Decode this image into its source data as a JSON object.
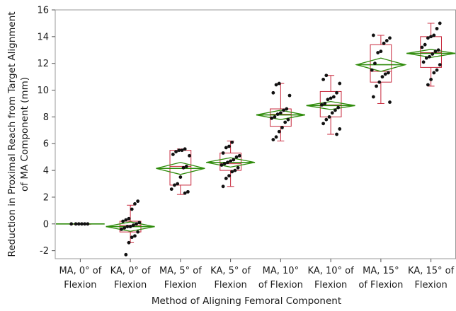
{
  "chart_data": {
    "type": "box-diamond",
    "xlabel": "Method of Aligning Femoral Component",
    "ylabel_lines": [
      "Reduction in Proximal Reach from Target Alignment",
      "of MA Component (mm)"
    ],
    "ylim": [
      -2.6,
      16
    ],
    "yticks": [
      -2,
      0,
      2,
      4,
      6,
      8,
      10,
      12,
      14,
      16
    ],
    "grid": "none",
    "colors": {
      "box": "#c8283c",
      "diamond": "#2e8b0a",
      "point": "#111111"
    },
    "categories": [
      {
        "label_lines": [
          "MA, 0° of",
          "Flexion"
        ],
        "box": {
          "min": 0,
          "q1": 0,
          "median": 0,
          "q3": 0,
          "max": 0
        },
        "mean": 0,
        "ci": [
          0,
          0
        ],
        "points": [
          0,
          0,
          0,
          0,
          0,
          0
        ]
      },
      {
        "label_lines": [
          "KA, 0° of",
          "Flexion"
        ],
        "box": {
          "min": -1.4,
          "q1": -0.6,
          "median": -0.1,
          "q3": 0.2,
          "max": 1.4
        },
        "mean": -0.2,
        "ci": [
          -0.55,
          0.15
        ],
        "points": [
          1.7,
          1.5,
          1.1,
          0.4,
          0.3,
          0.2,
          0.1,
          0.0,
          -0.1,
          -0.2,
          -0.2,
          -0.3,
          -0.4,
          -0.6,
          -0.9,
          -1.0,
          -1.4,
          -2.3
        ]
      },
      {
        "label_lines": [
          "MA, 5° of",
          "Flexion"
        ],
        "box": {
          "min": 2.2,
          "q1": 2.9,
          "median": 4.3,
          "q3": 5.5,
          "max": 5.6
        },
        "mean": 4.15,
        "ci": [
          3.7,
          4.6
        ],
        "points": [
          5.6,
          5.5,
          5.5,
          5.4,
          5.2,
          5.1,
          4.3,
          4.2,
          3.5,
          3.0,
          2.9,
          2.6,
          2.4,
          2.3
        ]
      },
      {
        "label_lines": [
          "KA, 5° of",
          "Flexion"
        ],
        "box": {
          "min": 2.8,
          "q1": 4.0,
          "median": 4.5,
          "q3": 5.3,
          "max": 6.2
        },
        "mean": 4.6,
        "ci": [
          4.25,
          4.95
        ],
        "points": [
          6.1,
          5.8,
          5.7,
          5.3,
          5.1,
          5.0,
          4.8,
          4.7,
          4.6,
          4.5,
          4.4,
          4.2,
          4.0,
          3.9,
          3.6,
          3.4,
          2.8
        ]
      },
      {
        "label_lines": [
          "MA, 10°",
          "of Flexion"
        ],
        "box": {
          "min": 6.2,
          "q1": 7.3,
          "median": 8.2,
          "q3": 8.6,
          "max": 10.5
        },
        "mean": 8.15,
        "ci": [
          7.8,
          8.5
        ],
        "points": [
          10.5,
          10.4,
          9.8,
          9.6,
          8.6,
          8.5,
          8.3,
          8.2,
          8.0,
          7.9,
          7.8,
          7.6,
          7.2,
          6.9,
          6.5,
          6.3
        ]
      },
      {
        "label_lines": [
          "KA, 10° of",
          "Flexion"
        ],
        "box": {
          "min": 6.7,
          "q1": 8.0,
          "median": 8.9,
          "q3": 9.9,
          "max": 11.1
        },
        "mean": 8.85,
        "ci": [
          8.55,
          9.15
        ],
        "points": [
          11.1,
          10.8,
          10.5,
          9.8,
          9.5,
          9.4,
          9.3,
          9.0,
          8.9,
          8.7,
          8.5,
          8.3,
          8.0,
          7.8,
          7.5,
          7.1,
          6.7
        ]
      },
      {
        "label_lines": [
          "MA, 15°",
          "of Flexion"
        ],
        "box": {
          "min": 9.0,
          "q1": 10.6,
          "median": 11.4,
          "q3": 13.4,
          "max": 14.1
        },
        "mean": 11.9,
        "ci": [
          11.4,
          12.4
        ],
        "points": [
          14.1,
          13.9,
          13.7,
          13.5,
          12.9,
          12.8,
          12.0,
          11.5,
          11.3,
          11.2,
          11.0,
          10.6,
          10.3,
          9.5,
          9.1
        ]
      },
      {
        "label_lines": [
          "KA, 15° of",
          "Flexion"
        ],
        "box": {
          "min": 10.3,
          "q1": 11.7,
          "median": 12.8,
          "q3": 14.0,
          "max": 15.0
        },
        "mean": 12.75,
        "ci": [
          12.45,
          13.05
        ],
        "points": [
          15.0,
          14.6,
          14.1,
          14.0,
          13.9,
          13.4,
          13.2,
          13.0,
          12.9,
          12.7,
          12.5,
          12.4,
          12.1,
          11.9,
          11.5,
          11.3,
          10.8,
          10.4
        ]
      }
    ]
  }
}
